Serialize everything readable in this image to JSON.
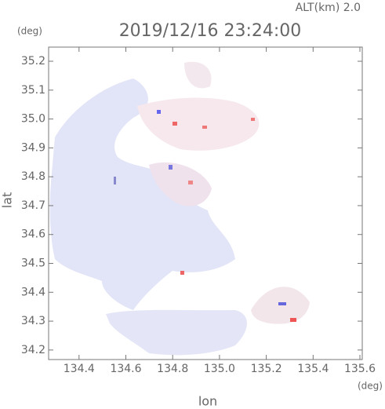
{
  "chart_data": {
    "type": "map",
    "title": "2019/12/16 23:24:00",
    "subtitle": "ALT(km) 2.0",
    "y_unit": "(deg)",
    "x_unit": "(deg)",
    "ylabel": "lat",
    "xlabel": "lon",
    "xlim": [
      134.27,
      135.61
    ],
    "ylim": [
      34.167,
      35.249
    ],
    "xticks": [
      134.4,
      134.6,
      134.8,
      {
        "value": 135.0,
        "label": "135.0"
      },
      135.2,
      135.4,
      135.6
    ],
    "yticks": [
      34.2,
      34.3,
      34.4,
      34.5,
      34.6,
      34.7,
      34.8,
      34.9,
      {
        "value": 35.0,
        "label": "35.0"
      },
      35.1,
      35.2
    ]
  }
}
